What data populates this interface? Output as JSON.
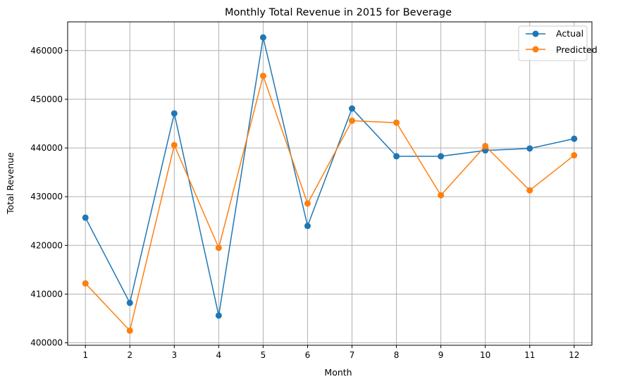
{
  "chart_data": {
    "type": "line",
    "title": "Monthly Total Revenue in 2015 for Beverage",
    "xlabel": "Month",
    "ylabel": "Total Revenue",
    "x": [
      1,
      2,
      3,
      4,
      5,
      6,
      7,
      8,
      9,
      10,
      11,
      12
    ],
    "x_ticks": [
      "1",
      "2",
      "3",
      "4",
      "5",
      "6",
      "7",
      "8",
      "9",
      "10",
      "11",
      "12"
    ],
    "xlim": [
      0.6,
      12.4
    ],
    "ylim": [
      399500,
      465900
    ],
    "y_ticks": [
      400000,
      410000,
      420000,
      430000,
      440000,
      450000,
      460000
    ],
    "y_tick_labels": [
      "400000",
      "410000",
      "420000",
      "430000",
      "440000",
      "450000",
      "460000"
    ],
    "grid": true,
    "legend_position": "top-right",
    "series": [
      {
        "name": "Actual",
        "color": "#1f77b4",
        "marker": "circle",
        "values": [
          425700,
          408200,
          447100,
          405600,
          462700,
          424000,
          448100,
          438300,
          438300,
          439500,
          439900,
          441900
        ]
      },
      {
        "name": "Predicted",
        "color": "#ff7f0e",
        "marker": "circle",
        "values": [
          412200,
          402500,
          440600,
          419500,
          454800,
          428600,
          445600,
          445200,
          430300,
          440400,
          431300,
          438500
        ]
      }
    ]
  }
}
